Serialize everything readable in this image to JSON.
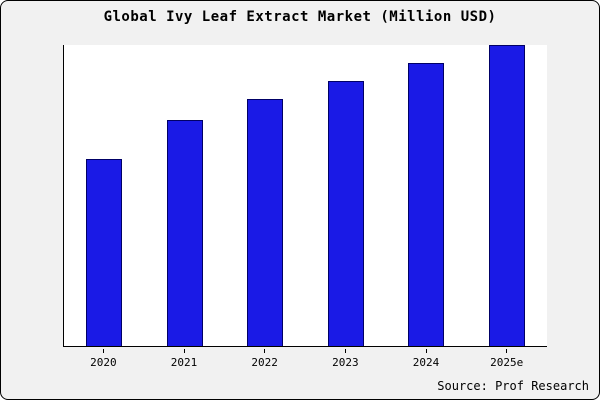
{
  "title": "Global Ivy Leaf Extract Market (Million USD)",
  "source": "Source: Prof Research",
  "colors": {
    "bar_fill": "#1a1ae6",
    "bar_border": "#000066",
    "page_background": "#f1f1f1",
    "plot_background": "#ffffff",
    "axis": "#000000"
  },
  "chart_data": {
    "type": "bar",
    "title": "Global Ivy Leaf Extract Market (Million USD)",
    "categories": [
      "2020",
      "2021",
      "2022",
      "2023",
      "2024",
      "2025e"
    ],
    "values": [
      62,
      75,
      82,
      88,
      94,
      100
    ],
    "xlabel": "",
    "ylabel": "",
    "ylim": [
      0,
      100
    ],
    "grid": false,
    "legend": false,
    "value_units": "relative (no y-axis scale shown in chart)"
  }
}
